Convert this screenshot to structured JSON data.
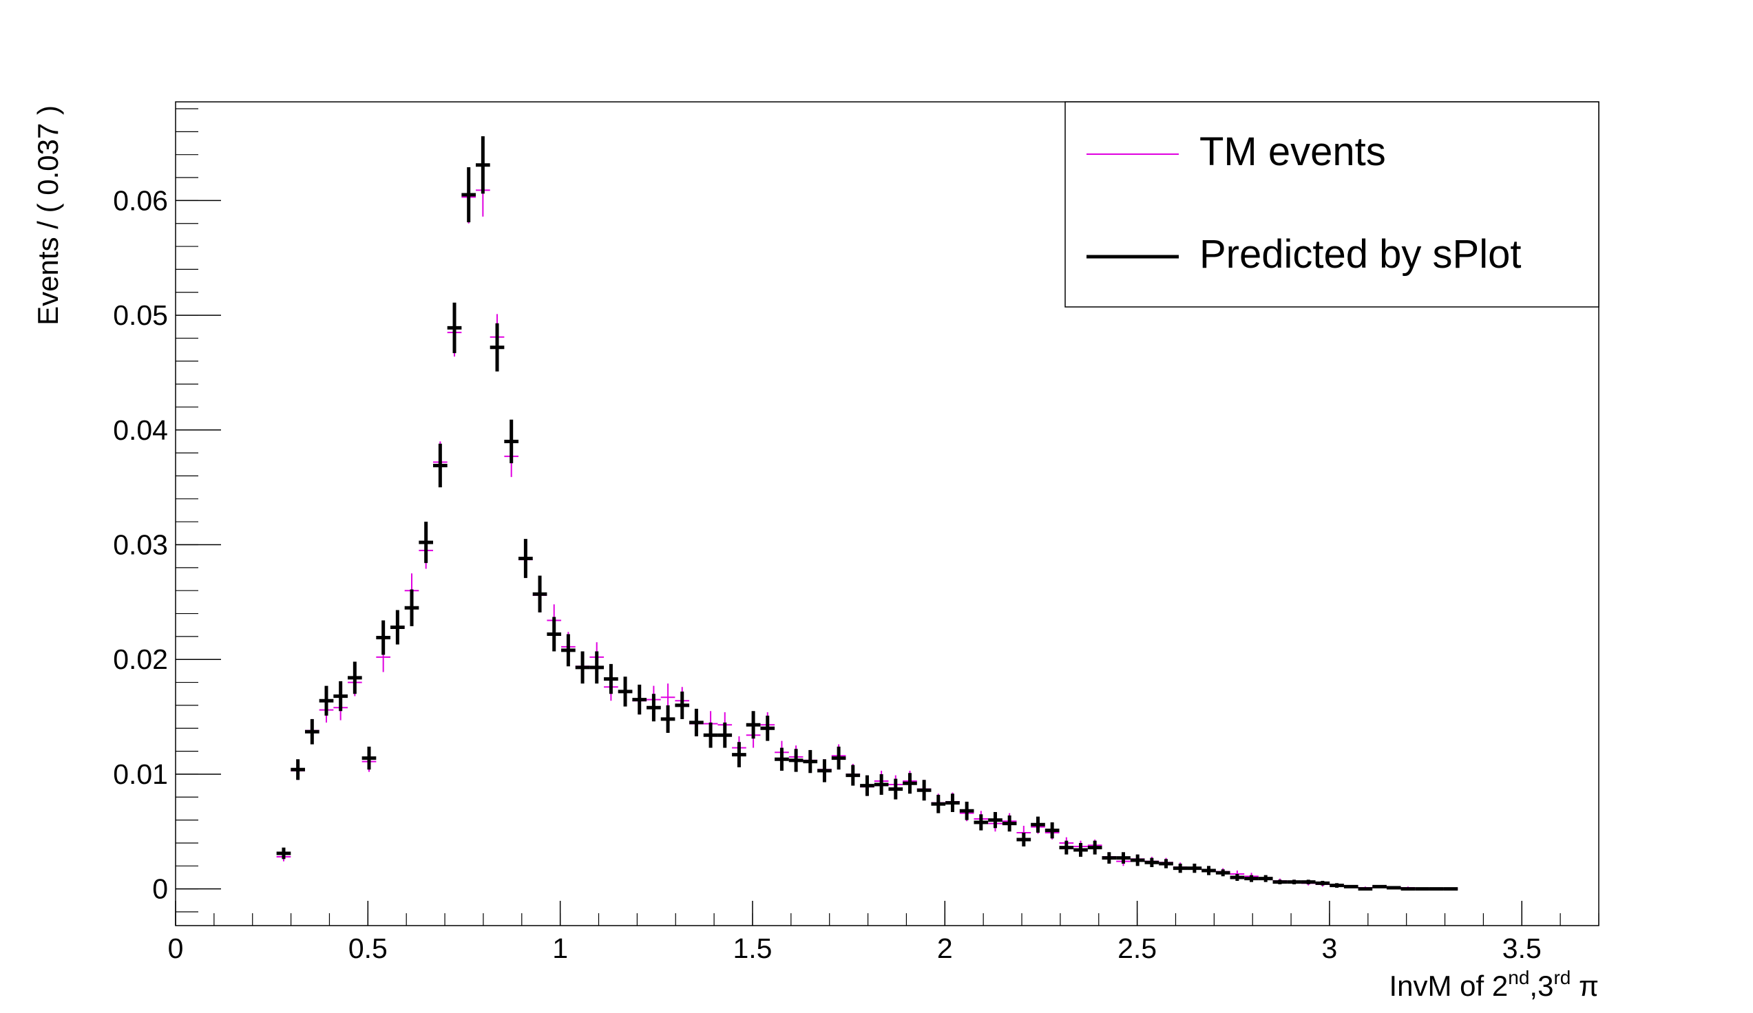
{
  "chart_data": {
    "type": "scatter",
    "title": "",
    "xlabel": "InvM of 2",
    "xlabel_sup1": "nd",
    "xlabel_mid": ",3",
    "xlabel_sup2": "rd",
    "xlabel_end": " π",
    "ylabel": "Events / ( 0.037 )",
    "xlim": [
      0,
      3.7
    ],
    "ylim": [
      -0.0032,
      0.0686
    ],
    "bin_width": 0.037,
    "x_ticks": [
      0,
      0.5,
      1,
      1.5,
      2,
      2.5,
      3,
      3.5
    ],
    "x_tick_labels": [
      "0",
      "0.5",
      "1",
      "1.5",
      "2",
      "2.5",
      "3",
      "3.5"
    ],
    "y_ticks": [
      0,
      0.01,
      0.02,
      0.03,
      0.04,
      0.05,
      0.06
    ],
    "y_tick_labels": [
      "0",
      "0.01",
      "0.02",
      "0.03",
      "0.04",
      "0.05",
      "0.06"
    ],
    "legend_position": "top-right",
    "x": [
      0.281,
      0.318,
      0.355,
      0.392,
      0.429,
      0.466,
      0.503,
      0.54,
      0.577,
      0.614,
      0.651,
      0.688,
      0.725,
      0.762,
      0.799,
      0.836,
      0.873,
      0.91,
      0.947,
      0.984,
      1.021,
      1.058,
      1.095,
      1.132,
      1.169,
      1.206,
      1.243,
      1.28,
      1.317,
      1.354,
      1.391,
      1.428,
      1.465,
      1.502,
      1.539,
      1.576,
      1.613,
      1.65,
      1.687,
      1.724,
      1.761,
      1.798,
      1.835,
      1.872,
      1.909,
      1.946,
      1.983,
      2.02,
      2.057,
      2.094,
      2.131,
      2.168,
      2.205,
      2.242,
      2.279,
      2.316,
      2.353,
      2.39,
      2.427,
      2.464,
      2.501,
      2.538,
      2.575,
      2.612,
      2.649,
      2.686,
      2.723,
      2.76,
      2.797,
      2.834,
      2.871,
      2.908,
      2.945,
      2.982,
      3.019,
      3.056,
      3.093,
      3.13,
      3.167,
      3.204,
      3.241,
      3.278,
      3.315
    ],
    "series": [
      {
        "name": "TM events",
        "color": "#e000e0",
        "values": [
          0.0028,
          0.0103,
          0.0138,
          0.0156,
          0.0158,
          0.018,
          0.0111,
          0.0202,
          0.0228,
          0.026,
          0.0295,
          0.0372,
          0.0485,
          0.0603,
          0.0609,
          0.0481,
          0.0377,
          0.0287,
          0.0256,
          0.0234,
          0.0211,
          0.0194,
          0.0202,
          0.0176,
          0.0172,
          0.0164,
          0.0165,
          0.0167,
          0.0164,
          0.0144,
          0.0144,
          0.0143,
          0.0123,
          0.0134,
          0.0143,
          0.0119,
          0.0115,
          0.0112,
          0.0104,
          0.0116,
          0.01,
          0.0089,
          0.0094,
          0.0091,
          0.0094,
          0.0087,
          0.0075,
          0.0076,
          0.0066,
          0.0061,
          0.0057,
          0.0059,
          0.0049,
          0.0054,
          0.0049,
          0.004,
          0.0037,
          0.0038,
          0.0028,
          0.0024,
          0.0026,
          0.0024,
          0.0023,
          0.0019,
          0.0018,
          0.0016,
          0.0015,
          0.0013,
          0.0011,
          0.0009,
          0.0007,
          0.0006,
          0.0005,
          0.0004,
          0.0003,
          0.0002,
          0.0001,
          0.0002,
          0.0001,
          0.0001,
          0.0,
          0.0,
          0.0
        ],
        "errors": [
          0.0004,
          0.0008,
          0.001,
          0.0011,
          0.0011,
          0.0012,
          0.0009,
          0.0013,
          0.0014,
          0.0015,
          0.0016,
          0.0018,
          0.0021,
          0.0023,
          0.0023,
          0.002,
          0.0018,
          0.0016,
          0.0015,
          0.0014,
          0.0013,
          0.0013,
          0.0013,
          0.0012,
          0.0012,
          0.0012,
          0.0012,
          0.0012,
          0.0012,
          0.0011,
          0.0011,
          0.0011,
          0.001,
          0.0011,
          0.0011,
          0.001,
          0.001,
          0.0009,
          0.0009,
          0.001,
          0.0009,
          0.0008,
          0.0009,
          0.0008,
          0.0009,
          0.0008,
          0.0008,
          0.0008,
          0.0007,
          0.0007,
          0.0007,
          0.0007,
          0.0006,
          0.0006,
          0.0006,
          0.0005,
          0.0005,
          0.0005,
          0.0004,
          0.0004,
          0.0004,
          0.0004,
          0.0004,
          0.0004,
          0.0003,
          0.0003,
          0.0003,
          0.0003,
          0.0003,
          0.0002,
          0.0002,
          0.0002,
          0.0002,
          0.0002,
          0.0001,
          0.0001,
          0.0001,
          0.0001,
          0.0001,
          0.0001,
          0.0,
          0.0,
          0.0
        ]
      },
      {
        "name": "Predicted by sPlot",
        "color": "#000000",
        "values": [
          0.0031,
          0.0104,
          0.0137,
          0.0164,
          0.0168,
          0.0184,
          0.0114,
          0.0219,
          0.0228,
          0.0245,
          0.0302,
          0.0369,
          0.0489,
          0.0605,
          0.0631,
          0.0472,
          0.039,
          0.0288,
          0.0257,
          0.0222,
          0.0208,
          0.0193,
          0.0193,
          0.0183,
          0.0172,
          0.0165,
          0.0158,
          0.0148,
          0.016,
          0.0145,
          0.0134,
          0.0134,
          0.0117,
          0.0143,
          0.014,
          0.0113,
          0.0112,
          0.0111,
          0.0103,
          0.0114,
          0.0099,
          0.009,
          0.0091,
          0.0087,
          0.0092,
          0.0086,
          0.0074,
          0.0075,
          0.0068,
          0.0058,
          0.006,
          0.0057,
          0.0043,
          0.0056,
          0.0051,
          0.0036,
          0.0034,
          0.0036,
          0.0027,
          0.0027,
          0.0025,
          0.0023,
          0.0022,
          0.0018,
          0.0018,
          0.0016,
          0.0014,
          0.001,
          0.0009,
          0.0009,
          0.0006,
          0.0006,
          0.0006,
          0.0005,
          0.0003,
          0.0002,
          0.0,
          0.0002,
          0.0001,
          0.0,
          0.0,
          0.0,
          0.0
        ],
        "errors": [
          0.0005,
          0.0009,
          0.0011,
          0.0013,
          0.0013,
          0.0014,
          0.001,
          0.0015,
          0.0015,
          0.0016,
          0.0018,
          0.0019,
          0.0022,
          0.0024,
          0.0025,
          0.0021,
          0.0019,
          0.0017,
          0.0016,
          0.0015,
          0.0014,
          0.0014,
          0.0014,
          0.0013,
          0.0013,
          0.0013,
          0.0012,
          0.0012,
          0.0012,
          0.0012,
          0.0011,
          0.0011,
          0.0011,
          0.0012,
          0.0011,
          0.001,
          0.001,
          0.001,
          0.001,
          0.001,
          0.0009,
          0.0009,
          0.0009,
          0.0009,
          0.0009,
          0.0009,
          0.0008,
          0.0008,
          0.0008,
          0.0007,
          0.0007,
          0.0007,
          0.0006,
          0.0007,
          0.0007,
          0.0006,
          0.0006,
          0.0006,
          0.0005,
          0.0005,
          0.0005,
          0.0004,
          0.0004,
          0.0004,
          0.0004,
          0.0004,
          0.0003,
          0.0003,
          0.0003,
          0.0003,
          0.0002,
          0.0002,
          0.0002,
          0.0002,
          0.0002,
          0.0001,
          0.0,
          0.0001,
          0.0001,
          0.0,
          0.0,
          0.0,
          0.0
        ]
      }
    ]
  }
}
